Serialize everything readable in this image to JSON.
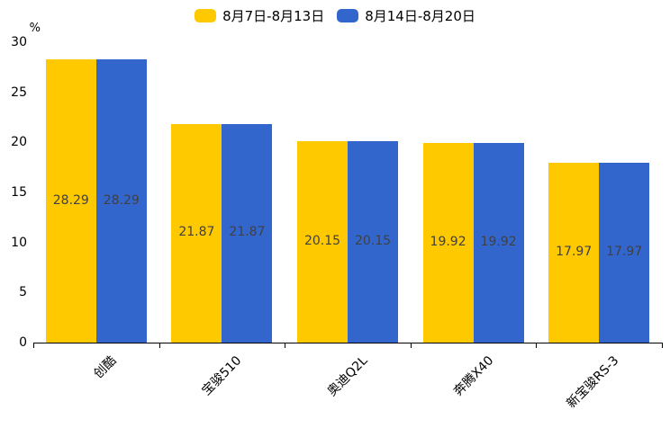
{
  "chart_data": {
    "type": "bar",
    "title": "",
    "unit_label": "%",
    "categories": [
      "创酷",
      "宝骏510",
      "奥迪Q2L",
      "奔腾X40",
      "新宝骏RS-3"
    ],
    "series": [
      {
        "name": "8月7日-8月13日",
        "color": "#FFC900",
        "values": [
          28.29,
          21.87,
          20.15,
          19.92,
          17.97
        ]
      },
      {
        "name": "8月14日-8月20日",
        "color": "#3366CC",
        "values": [
          28.29,
          21.87,
          20.15,
          19.92,
          17.97
        ]
      }
    ],
    "value_labels": [
      [
        "28.29",
        "21.87",
        "20.15",
        "19.92",
        "17.97"
      ],
      [
        "28.29",
        "21.87",
        "20.15",
        "19.92",
        "17.97"
      ]
    ],
    "ylim": [
      0,
      30
    ],
    "yticks": [
      0,
      5,
      10,
      15,
      20,
      25,
      30
    ],
    "grid": false,
    "legend_position": "top",
    "value_label_color": "#404040",
    "axis_color": "#000000"
  }
}
